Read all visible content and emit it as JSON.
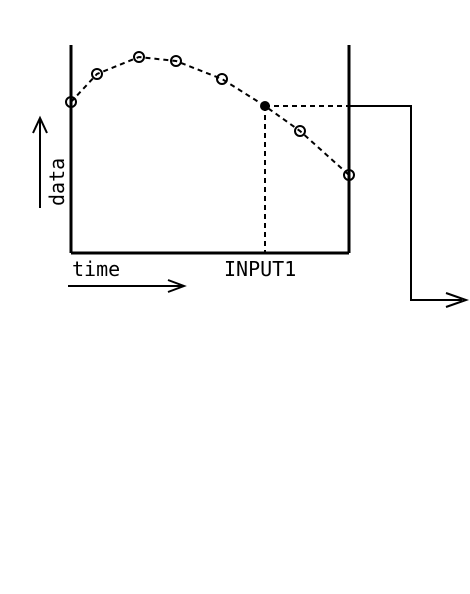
{
  "diagram": {
    "x_label": "time",
    "y_label": "data",
    "input_label": "INPUT1",
    "line_color": "#000000",
    "background": "#ffffff",
    "markers": {
      "open": "open-circle",
      "selected": "filled-dot"
    }
  }
}
